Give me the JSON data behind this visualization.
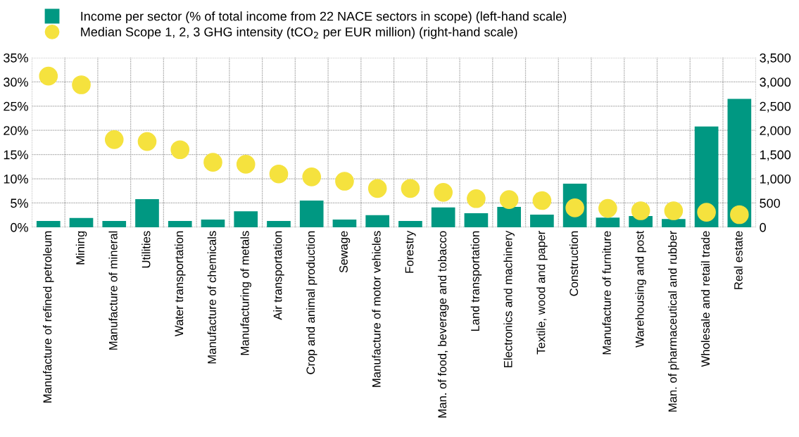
{
  "chart_data": {
    "type": "bar",
    "categories": [
      "Manufacture of refined petroleum",
      "Mining",
      "Manufacture of mineral",
      "Utilities",
      "Water transportation",
      "Manufacture of chemicals",
      "Manufacturing of metals",
      "Air transportation",
      "Crop and animal production",
      "Sewage",
      "Manufacture of motor vehicles",
      "Forestry",
      "Man. of food, beverage and tobacco",
      "Land transportation",
      "Electronics and machinery",
      "Textile, wood and paper",
      "Construction",
      "Manufacture of furniture",
      "Warehousing and post",
      "Man. of pharmaceutical and rubber",
      "Wholesale and retail trade",
      "Real estate"
    ],
    "series": [
      {
        "name": "Income per sector (% of total income from 22 NACE sectors in scope) (left-hand scale)",
        "axis": "y",
        "color": "#009882",
        "values": [
          1.3,
          1.9,
          1.3,
          5.8,
          1.3,
          1.6,
          3.3,
          1.3,
          5.5,
          1.6,
          2.5,
          1.3,
          4.1,
          2.9,
          4.2,
          2.6,
          9.0,
          2.0,
          2.3,
          1.7,
          20.8,
          26.5
        ]
      },
      {
        "name": "Median Scope 1, 2, 3 GHG intensity (tCO$_{2}$ per EUR million) (right-hand scale)",
        "type": "scatter",
        "axis": "y2",
        "color": "#f5e23e",
        "marker": "circle",
        "values": [
          3120,
          2940,
          1810,
          1770,
          1600,
          1340,
          1300,
          1100,
          1040,
          950,
          800,
          800,
          720,
          590,
          570,
          550,
          400,
          390,
          340,
          340,
          310,
          260
        ]
      }
    ],
    "ylim": [
      0,
      35
    ],
    "yticks": [
      {
        "value": 0,
        "label": "0%"
      },
      {
        "value": 5,
        "label": "5%"
      },
      {
        "value": 10,
        "label": "10%"
      },
      {
        "value": 15,
        "label": "15%"
      },
      {
        "value": 20,
        "label": "20%"
      },
      {
        "value": 25,
        "label": "25%"
      },
      {
        "value": 30,
        "label": "30%"
      },
      {
        "value": 35,
        "label": "35%"
      }
    ],
    "y2lim": [
      0,
      3500
    ],
    "y2ticks": [
      0,
      {
        "value": 500,
        "label": "500"
      },
      {
        "value": 1000,
        "label": "1,000"
      },
      {
        "value": 1500,
        "label": "1,500"
      },
      {
        "value": 2000,
        "label": "2,000"
      },
      {
        "value": 2500,
        "label": "2,500"
      },
      {
        "value": 3000,
        "label": "3,000"
      },
      {
        "value": 3500,
        "label": "3,500"
      }
    ],
    "grid": true,
    "legend": "top left"
  }
}
